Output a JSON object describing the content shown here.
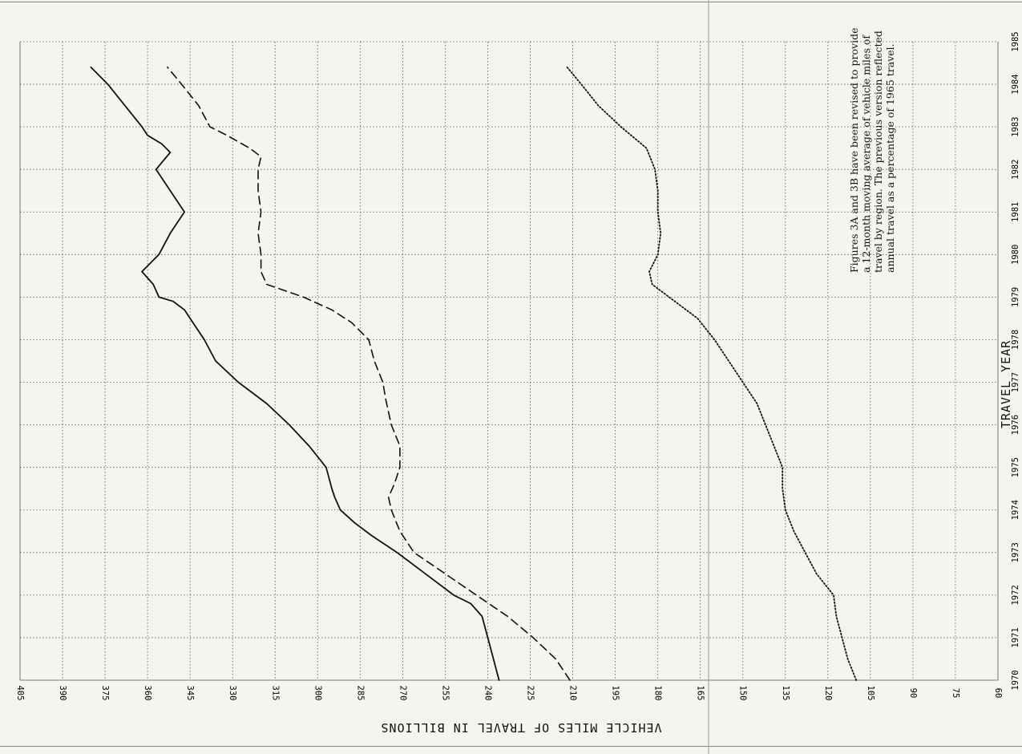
{
  "chart_data": {
    "type": "line",
    "title": "",
    "xlabel": "TRAVEL YEAR",
    "ylabel": "VEHICLE MILES OF TRAVEL IN BILLIONS",
    "x_ticks": [
      "1970",
      "1971",
      "1972",
      "1973",
      "1974",
      "1975",
      "1976",
      "1977",
      "1978",
      "1979",
      "1980",
      "1981",
      "1982",
      "1983",
      "1984",
      "1985"
    ],
    "y_ticks": [
      "405",
      "390",
      "375",
      "360",
      "345",
      "330",
      "315",
      "300",
      "285",
      "270",
      "255",
      "240",
      "225",
      "210",
      "195",
      "180",
      "165",
      "150",
      "135",
      "120",
      "105",
      "90",
      "75",
      "60"
    ],
    "xlim": [
      1970,
      1985
    ],
    "ylim": [
      60,
      405
    ],
    "grid": true,
    "note": "Figures 3A and 3B have been revised to provide\na 12-month moving average of vehicle miles of\ntravel by region. The previous version reflected\nannual travel as a percentage of 1965 travel.",
    "series": [
      {
        "style": "solid",
        "x": [
          1970.0,
          1970.5,
          1971.0,
          1971.5,
          1971.8,
          1972.0,
          1972.5,
          1973.0,
          1973.4,
          1973.7,
          1974.0,
          1974.3,
          1974.5,
          1975.0,
          1975.5,
          1976.0,
          1976.5,
          1977.0,
          1977.5,
          1978.0,
          1978.4,
          1978.7,
          1978.9,
          1979.0,
          1979.3,
          1979.6,
          1980.0,
          1980.5,
          1981.0,
          1981.5,
          1982.0,
          1982.4,
          1982.6,
          1982.8,
          1983.0,
          1983.5,
          1984.0,
          1984.4
        ],
        "y": [
          236,
          238,
          240,
          242,
          246,
          252,
          262,
          272,
          281,
          287,
          292,
          294,
          295,
          297,
          303,
          310,
          318,
          328,
          336,
          340,
          344,
          347,
          351,
          356,
          358,
          362,
          356,
          352,
          347,
          352,
          357,
          352,
          355,
          360,
          362,
          368,
          374,
          380
        ]
      },
      {
        "style": "dashed",
        "x": [
          1970.0,
          1970.5,
          1971.0,
          1971.5,
          1972.0,
          1972.5,
          1973.0,
          1973.5,
          1974.0,
          1974.3,
          1974.6,
          1975.0,
          1975.5,
          1976.0,
          1976.3,
          1976.6,
          1977.0,
          1977.5,
          1978.0,
          1978.4,
          1978.7,
          1979.0,
          1979.3,
          1979.6,
          1980.0,
          1980.5,
          1981.0,
          1981.5,
          1982.0,
          1982.3,
          1982.5,
          1982.8,
          1983.0,
          1983.5,
          1984.0,
          1984.4
        ],
        "y": [
          211,
          216,
          224,
          233,
          244,
          255,
          266,
          271,
          274,
          275,
          273,
          271,
          271,
          274,
          275,
          276,
          277,
          280,
          282,
          288,
          295,
          305,
          318,
          320,
          320,
          321,
          320,
          321,
          321,
          320,
          324,
          332,
          338,
          342,
          348,
          353
        ]
      },
      {
        "style": "dotted",
        "x": [
          1970.0,
          1970.5,
          1971.0,
          1971.5,
          1972.0,
          1972.5,
          1973.0,
          1973.5,
          1974.0,
          1974.5,
          1975.0,
          1975.5,
          1976.0,
          1976.5,
          1977.0,
          1977.5,
          1978.0,
          1978.5,
          1979.0,
          1979.3,
          1979.6,
          1980.0,
          1980.5,
          1981.0,
          1981.5,
          1982.0,
          1982.5,
          1983.0,
          1983.5,
          1984.0,
          1984.4
        ],
        "y": [
          110,
          113,
          115,
          117,
          118,
          124,
          128,
          132,
          135,
          136,
          136,
          139,
          142,
          145,
          150,
          155,
          160,
          166,
          176,
          182,
          183,
          180,
          179,
          180,
          180,
          181,
          184,
          193,
          201,
          207,
          212
        ]
      }
    ]
  }
}
